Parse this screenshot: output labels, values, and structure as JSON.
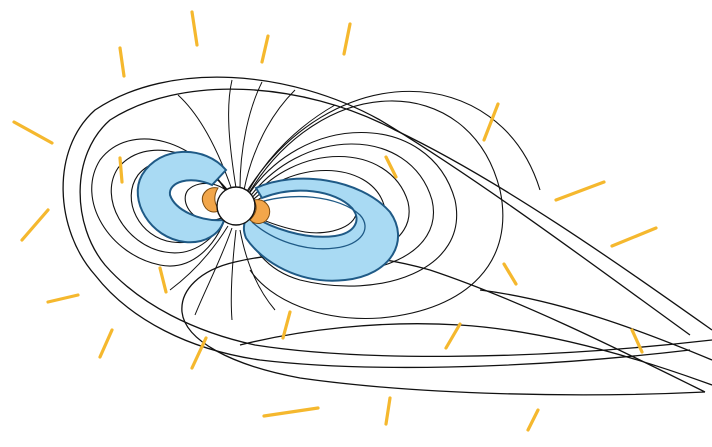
{
  "diagram": {
    "kind": "magnetosphere",
    "labels": [],
    "colors": {
      "background": "#ffffff",
      "field_lines": "#111111",
      "radiation_belt_fill": "#a9daf3",
      "radiation_belt_stroke": "#1f5a86",
      "inner_belt_fill": "#f2a64a",
      "inner_belt_stroke": "#7a4a10",
      "planet_fill": "#ffffff",
      "particle_streaks": "#f5b82e"
    },
    "icons": [
      "planet",
      "field-lines",
      "outer-radiation-belt",
      "inner-radiation-belt",
      "solar-wind-particles"
    ]
  }
}
